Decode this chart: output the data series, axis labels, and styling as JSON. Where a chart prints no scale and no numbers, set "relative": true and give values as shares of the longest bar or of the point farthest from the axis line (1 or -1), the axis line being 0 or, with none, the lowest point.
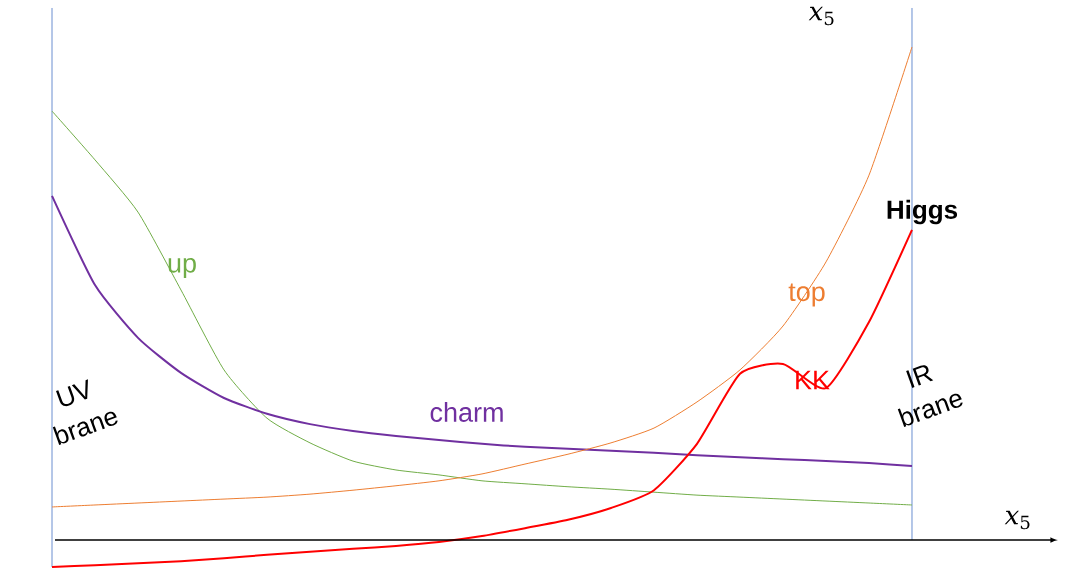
{
  "chart_data": {
    "type": "line",
    "relative": true,
    "xlabel": "*x*$_{5}$",
    "ylabel": "*x*$_{5}$",
    "categories": [
      null,
      null,
      null,
      null,
      null,
      null,
      null,
      null,
      null,
      null,
      null,
      null,
      null,
      null,
      null,
      null,
      null,
      null,
      null,
      null,
      null
    ],
    "series": [
      {
        "name": "up",
        "color": "#70ad47",
        "values": [
          0.87,
          0.771,
          0.665,
          0.507,
          0.345,
          0.247,
          0.197,
          0.16,
          0.142,
          0.132,
          0.12,
          0.114,
          0.108,
          0.103,
          0.097,
          0.091,
          0.087,
          0.083,
          0.079,
          0.075,
          0.071
        ]
      },
      {
        "name": "charm",
        "color": "#7030a0",
        "values": [
          0.698,
          0.517,
          0.41,
          0.339,
          0.288,
          0.256,
          0.235,
          0.221,
          0.211,
          0.203,
          0.195,
          0.189,
          0.185,
          0.181,
          0.177,
          0.172,
          0.168,
          0.164,
          0.16,
          0.156,
          0.15
        ]
      },
      {
        "name": "top",
        "color": "#ed7d31",
        "values": [
          0.067,
          0.071,
          0.075,
          0.079,
          0.083,
          0.087,
          0.093,
          0.101,
          0.11,
          0.12,
          0.134,
          0.154,
          0.174,
          0.197,
          0.227,
          0.28,
          0.345,
          0.434,
          0.564,
          0.74,
          1
        ]
      },
      {
        "name": "KK",
        "color": "#ff0000",
        "values": [
          -0.055,
          -0.051,
          -0.047,
          -0.043,
          -0.037,
          -0.03,
          -0.024,
          -0.018,
          -0.012,
          -0.004,
          0.008,
          0.024,
          0.041,
          0.065,
          0.101,
          0.195,
          0.337,
          0.357,
          0.308,
          0.442,
          0.629
        ]
      }
    ],
    "annotations": [
      "UV brane",
      "IR brane",
      "Higgs"
    ]
  }
}
